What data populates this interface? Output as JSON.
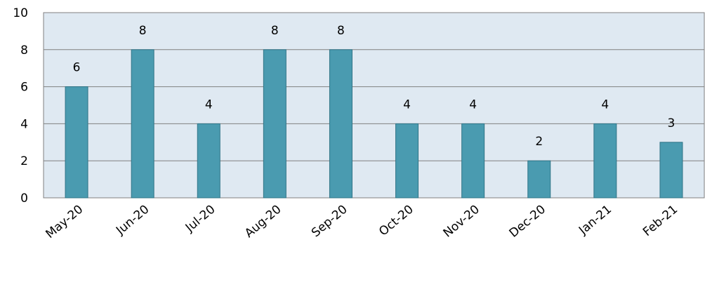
{
  "chart_data": {
    "type": "bar",
    "categories": [
      "May-20",
      "Jun-20",
      "Jul-20",
      "Aug-20",
      "Sep-20",
      "Oct-20",
      "Nov-20",
      "Dec-20",
      "Jan-21",
      "Feb-21"
    ],
    "values": [
      6,
      8,
      4,
      8,
      8,
      4,
      4,
      2,
      4,
      3
    ],
    "color": "#4a9bb0",
    "ylim": [
      0,
      10
    ],
    "yticks": [
      0,
      2,
      4,
      6,
      8,
      10
    ],
    "grid": true
  }
}
